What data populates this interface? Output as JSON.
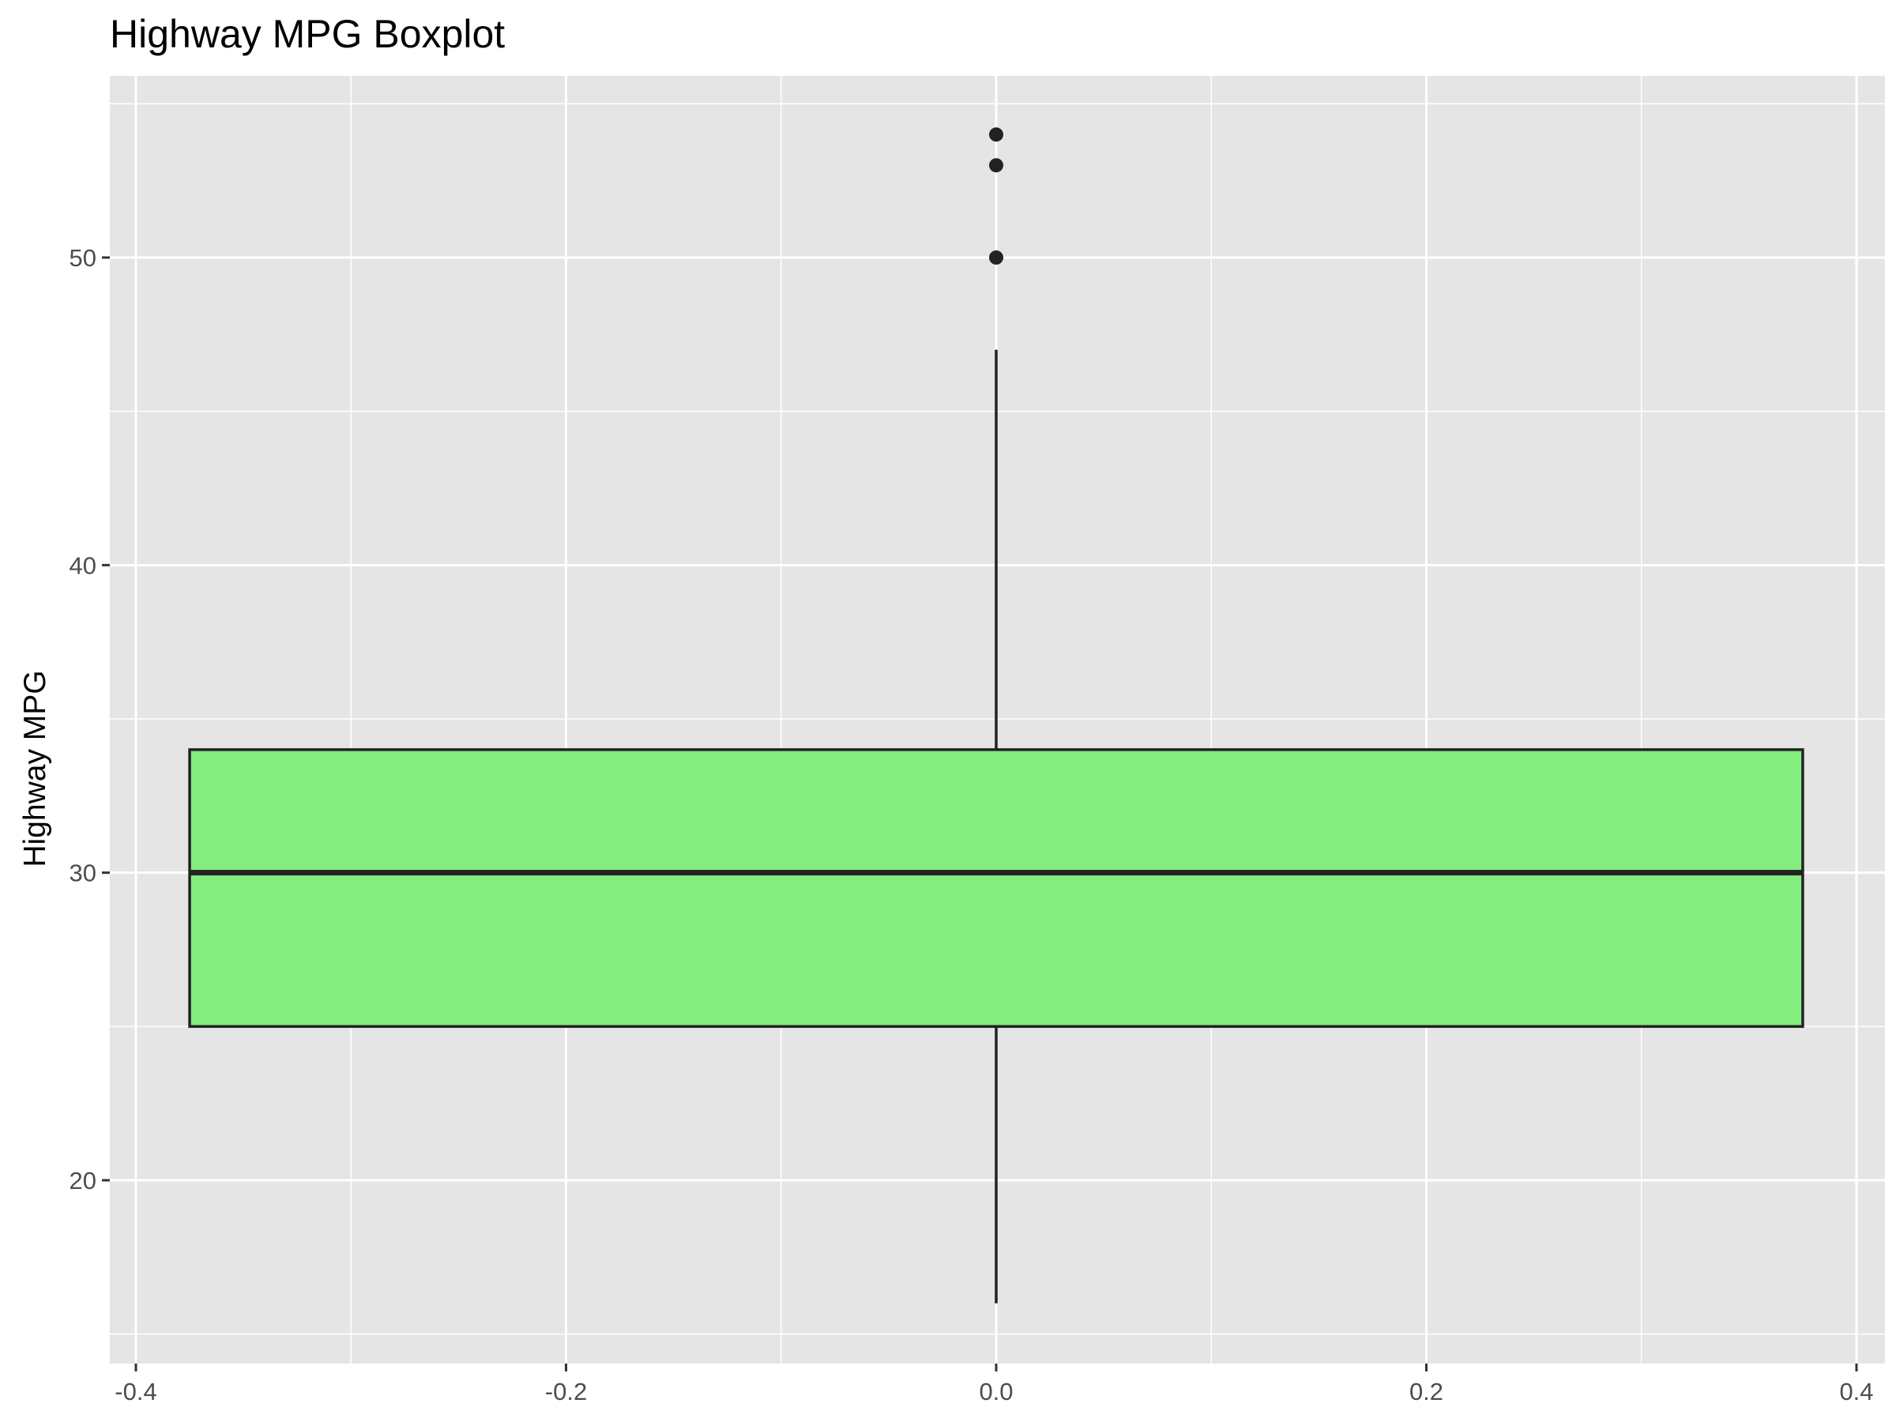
{
  "chart_data": {
    "type": "boxplot",
    "title": "Highway MPG Boxplot",
    "xlabel": "",
    "ylabel": "Highway MPG",
    "xlim": [
      -0.4,
      0.4
    ],
    "ylim": [
      15,
      55
    ],
    "x_ticks": [
      -0.4,
      -0.2,
      0.0,
      0.2,
      0.4
    ],
    "x_tick_labels": [
      "-0.4",
      "-0.2",
      "0.0",
      "0.2",
      "0.4"
    ],
    "y_ticks": [
      20,
      30,
      40,
      50
    ],
    "y_tick_labels": [
      "20",
      "30",
      "40",
      "50"
    ],
    "grid": true,
    "box": {
      "x_center": 0.0,
      "x_min": -0.375,
      "x_max": 0.375,
      "whisker_low": 16,
      "q1": 25,
      "median": 30,
      "q3": 34,
      "whisker_high": 47,
      "outliers": [
        50,
        53,
        54
      ]
    },
    "colors": {
      "box_fill": "#83ED7F",
      "line": "#222222",
      "panel_bg": "#E5E5E5",
      "grid": "#FFFFFF"
    }
  }
}
